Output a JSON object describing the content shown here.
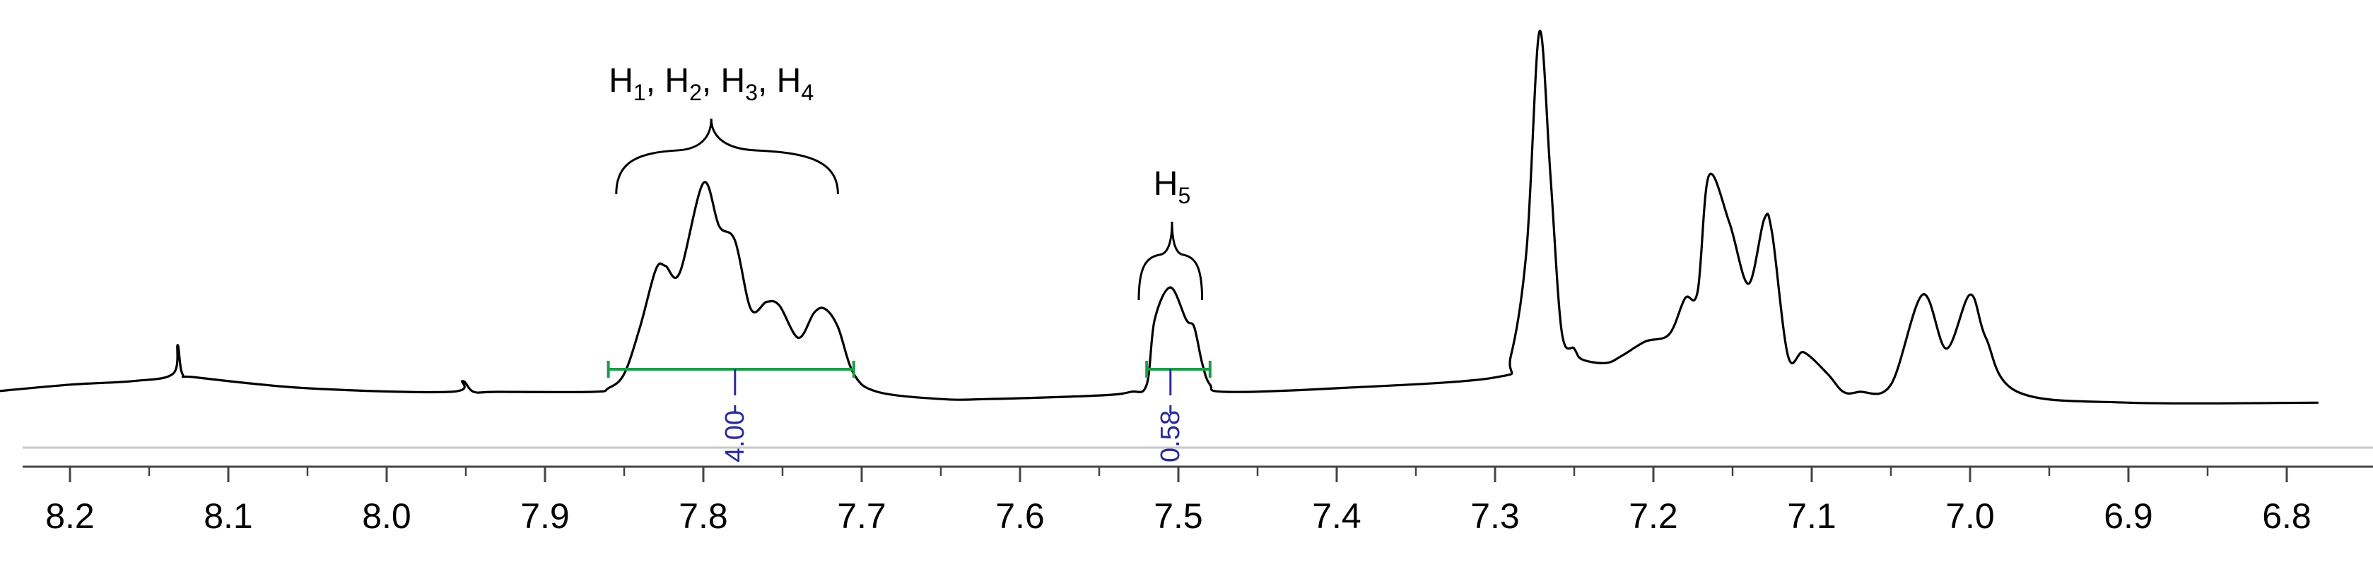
{
  "chart_data": {
    "type": "line",
    "title": "",
    "xlabel": "",
    "ylabel": "",
    "x_reversed": true,
    "xlim": [
      8.25,
      6.78
    ],
    "ylim": [
      0,
      1
    ],
    "grid": false,
    "legend": "none",
    "x_ticks": [
      8.2,
      8.1,
      8.0,
      7.9,
      7.8,
      7.7,
      7.6,
      7.5,
      7.4,
      7.3,
      7.2,
      7.1,
      7.0,
      6.9,
      6.8
    ],
    "x_tick_labels": [
      "8.2",
      "8.1",
      "8.0",
      "7.9",
      "7.8",
      "7.7",
      "7.6",
      "7.5",
      "7.4",
      "7.3",
      "7.2",
      "7.1",
      "7.0",
      "6.9",
      "6.8"
    ],
    "series": [
      {
        "x": [
          8.25,
          8.2,
          8.16,
          8.135,
          8.132,
          8.129,
          8.12,
          8.05,
          7.96,
          7.952,
          7.945,
          7.93,
          7.87,
          7.86,
          7.85,
          7.84,
          7.83,
          7.824,
          7.815,
          7.8,
          7.79,
          7.78,
          7.77,
          7.76,
          7.752,
          7.74,
          7.73,
          7.723,
          7.715,
          7.705,
          7.69,
          7.65,
          7.62,
          7.55,
          7.53,
          7.52,
          7.515,
          7.505,
          7.495,
          7.49,
          7.485,
          7.48,
          7.47,
          7.4,
          7.3,
          7.29,
          7.28,
          7.272,
          7.265,
          7.258,
          7.25,
          7.245,
          7.23,
          7.22,
          7.205,
          7.19,
          7.18,
          7.172,
          7.165,
          7.152,
          7.14,
          7.13,
          7.125,
          7.115,
          7.105,
          7.09,
          7.08,
          7.07,
          7.05,
          7.03,
          7.015,
          7.0,
          6.99,
          6.97,
          6.9,
          6.78
        ],
        "y": [
          0.0,
          0.02,
          0.03,
          0.05,
          0.13,
          0.05,
          0.04,
          0.01,
          0.0,
          0.03,
          0.0,
          0.0,
          0.0,
          0.01,
          0.05,
          0.18,
          0.34,
          0.35,
          0.33,
          0.58,
          0.46,
          0.42,
          0.23,
          0.25,
          0.24,
          0.15,
          0.22,
          0.23,
          0.18,
          0.05,
          0.0,
          -0.02,
          -0.02,
          -0.01,
          0.0,
          0.02,
          0.2,
          0.29,
          0.2,
          0.18,
          0.08,
          0.02,
          0.0,
          0.01,
          0.04,
          0.1,
          0.4,
          1.0,
          0.6,
          0.17,
          0.12,
          0.09,
          0.08,
          0.1,
          0.14,
          0.16,
          0.26,
          0.28,
          0.6,
          0.47,
          0.3,
          0.48,
          0.44,
          0.1,
          0.11,
          0.05,
          0.0,
          0.0,
          0.02,
          0.27,
          0.12,
          0.27,
          0.15,
          0.0,
          -0.03,
          -0.03
        ]
      }
    ],
    "integrals": [
      {
        "from": 7.86,
        "to": 7.705,
        "label": "4.00",
        "label_at": 7.78
      },
      {
        "from": 7.52,
        "to": 7.48,
        "label": "0.58",
        "label_at": 7.505
      }
    ],
    "annotations": [
      {
        "base": "H",
        "subs": [
          "1",
          "2",
          "3",
          "4"
        ],
        "separator": ", ",
        "x": 7.795,
        "from": 7.855,
        "to": 7.715
      },
      {
        "base": "H",
        "subs": [
          "5"
        ],
        "separator": ", ",
        "x": 7.504,
        "from": 7.525,
        "to": 7.485
      }
    ]
  }
}
